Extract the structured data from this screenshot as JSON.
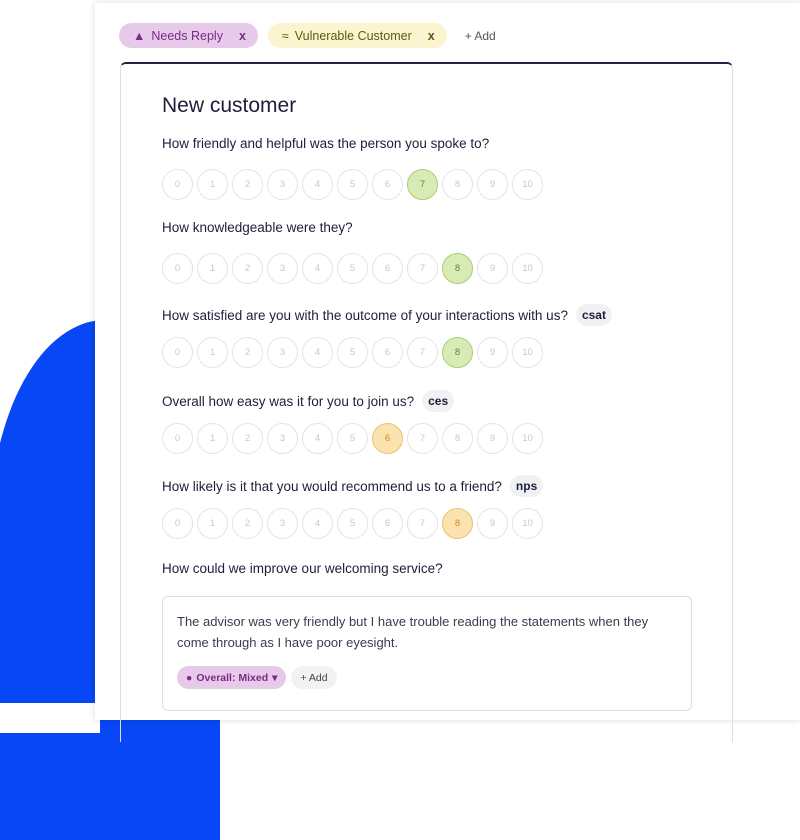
{
  "tags": [
    {
      "label": "Needs Reply",
      "icon": "bell-icon",
      "remove": "x"
    },
    {
      "label": "Vulnerable Customer",
      "icon": "handshake-icon",
      "remove": "x"
    }
  ],
  "add_tag": "+ Add",
  "form": {
    "title": "New customer",
    "questions": [
      {
        "text": "How friendly and helpful was the person you spoke to?",
        "badge": "",
        "selected": 7,
        "color": "green"
      },
      {
        "text": "How knowledgeable were they?",
        "badge": "",
        "selected": 8,
        "color": "green"
      },
      {
        "text": "How satisfied are you with the outcome of your interactions with us?",
        "badge": "csat",
        "selected": 8,
        "color": "green"
      },
      {
        "text": "Overall how easy was it for you to join us?",
        "badge": "ces",
        "selected": 6,
        "color": "orange"
      },
      {
        "text": "How likely is it that you would recommend us to a friend?",
        "badge": "nps",
        "selected": 8,
        "color": "orange"
      }
    ],
    "scale": [
      "0",
      "1",
      "2",
      "3",
      "4",
      "5",
      "6",
      "7",
      "8",
      "9",
      "10"
    ],
    "open_question": "How could we improve our welcoming service?",
    "answer": "The advisor was very friendly but I have trouble reading the statements when they come through as I have poor eyesight.",
    "sentiment": "Overall: Mixed",
    "add_label": "+ Add"
  },
  "colors": {
    "accent_blue": "#0847f5",
    "green": "#d8ebb7",
    "orange": "#fbe3b0",
    "purple_tag": "#e7c9ea",
    "yellow_tag": "#fbf4cf"
  }
}
